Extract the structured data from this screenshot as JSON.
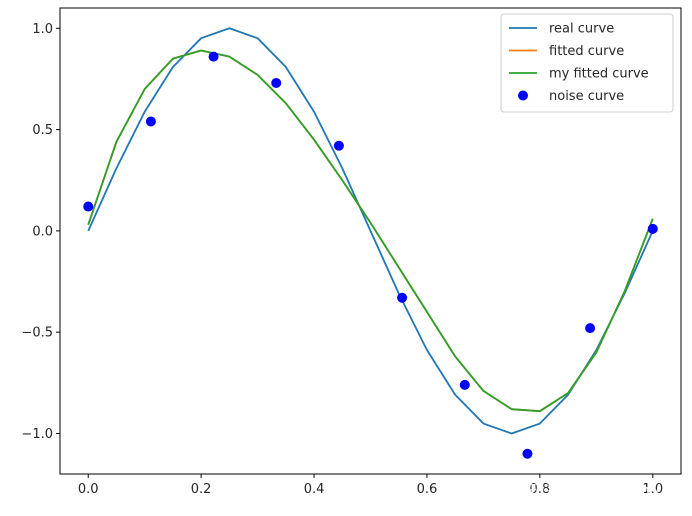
{
  "chart_data": {
    "type": "line",
    "xlim": [
      -0.05,
      1.05
    ],
    "ylim": [
      -1.2,
      1.1
    ],
    "xticks": [
      0.0,
      0.2,
      0.4,
      0.6,
      0.8,
      1.0
    ],
    "xtick_labels": [
      "0.0",
      "0.2",
      "0.4",
      "0.6",
      "0.8",
      "1.0"
    ],
    "yticks": [
      -1.0,
      -0.5,
      0.0,
      0.5,
      1.0
    ],
    "ytick_labels": [
      "−1.0",
      "−0.5",
      "0.0",
      "0.5",
      "1.0"
    ],
    "grid": false,
    "legend_position": "top-right",
    "series": [
      {
        "name": "real curve",
        "kind": "line",
        "color": "#1f77b4",
        "x": [
          0.0,
          0.05,
          0.1,
          0.15,
          0.2,
          0.25,
          0.3,
          0.35,
          0.4,
          0.45,
          0.5,
          0.55,
          0.6,
          0.65,
          0.7,
          0.75,
          0.8,
          0.85,
          0.9,
          0.95,
          1.0
        ],
        "y": [
          0.0,
          0.309,
          0.588,
          0.809,
          0.951,
          1.0,
          0.951,
          0.809,
          0.588,
          0.309,
          0.0,
          -0.309,
          -0.588,
          -0.809,
          -0.951,
          -1.0,
          -0.951,
          -0.809,
          -0.588,
          -0.309,
          0.0
        ]
      },
      {
        "name": "fitted curve",
        "kind": "line",
        "color": "#ff7f0e",
        "x": [
          0.0,
          0.05,
          0.1,
          0.15,
          0.2,
          0.25,
          0.3,
          0.35,
          0.4,
          0.45,
          0.5,
          0.55,
          0.6,
          0.65,
          0.7,
          0.75,
          0.8,
          0.85,
          0.9,
          0.95,
          1.0
        ],
        "y": [
          0.03,
          0.44,
          0.7,
          0.85,
          0.89,
          0.86,
          0.77,
          0.63,
          0.45,
          0.25,
          0.04,
          -0.18,
          -0.4,
          -0.62,
          -0.79,
          -0.88,
          -0.89,
          -0.8,
          -0.6,
          -0.3,
          0.06
        ]
      },
      {
        "name": "my fitted curve",
        "kind": "line",
        "color": "#2ca02c",
        "x": [
          0.0,
          0.05,
          0.1,
          0.15,
          0.2,
          0.25,
          0.3,
          0.35,
          0.4,
          0.45,
          0.5,
          0.55,
          0.6,
          0.65,
          0.7,
          0.75,
          0.8,
          0.85,
          0.9,
          0.95,
          1.0
        ],
        "y": [
          0.03,
          0.44,
          0.7,
          0.85,
          0.89,
          0.86,
          0.77,
          0.63,
          0.45,
          0.25,
          0.04,
          -0.18,
          -0.4,
          -0.62,
          -0.79,
          -0.88,
          -0.89,
          -0.8,
          -0.6,
          -0.3,
          0.06
        ]
      },
      {
        "name": "noise curve",
        "kind": "scatter",
        "color": "#0000ff",
        "x": [
          0.0,
          0.111,
          0.222,
          0.333,
          0.444,
          0.556,
          0.667,
          0.778,
          0.889,
          1.0
        ],
        "y": [
          0.12,
          0.54,
          0.86,
          0.73,
          0.42,
          -0.33,
          -0.76,
          -1.1,
          -0.48,
          0.01
        ]
      }
    ]
  },
  "watermark": "知乎 @绫风flow"
}
